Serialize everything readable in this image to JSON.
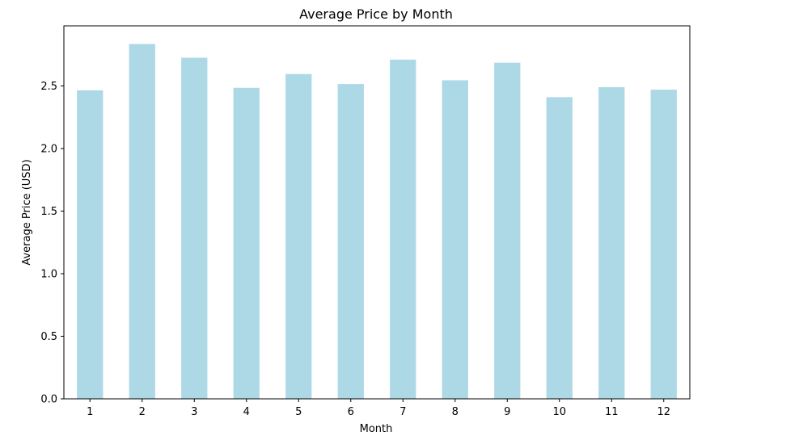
{
  "chart_data": {
    "type": "bar",
    "title": "Average Price by Month",
    "xlabel": "Month",
    "ylabel": "Average Price (USD)",
    "categories": [
      "1",
      "2",
      "3",
      "4",
      "5",
      "6",
      "7",
      "8",
      "9",
      "10",
      "11",
      "12"
    ],
    "values": [
      2.465,
      2.835,
      2.725,
      2.485,
      2.595,
      2.515,
      2.71,
      2.545,
      2.685,
      2.41,
      2.49,
      2.47
    ],
    "ylim": [
      0,
      2.98
    ],
    "yticks": [
      0.0,
      0.5,
      1.0,
      1.5,
      2.0,
      2.5
    ],
    "ytick_labels": [
      "0.0",
      "0.5",
      "1.0",
      "1.5",
      "2.0",
      "2.5"
    ],
    "bar_color": "#add8e6",
    "grid": false,
    "legend": "none"
  }
}
